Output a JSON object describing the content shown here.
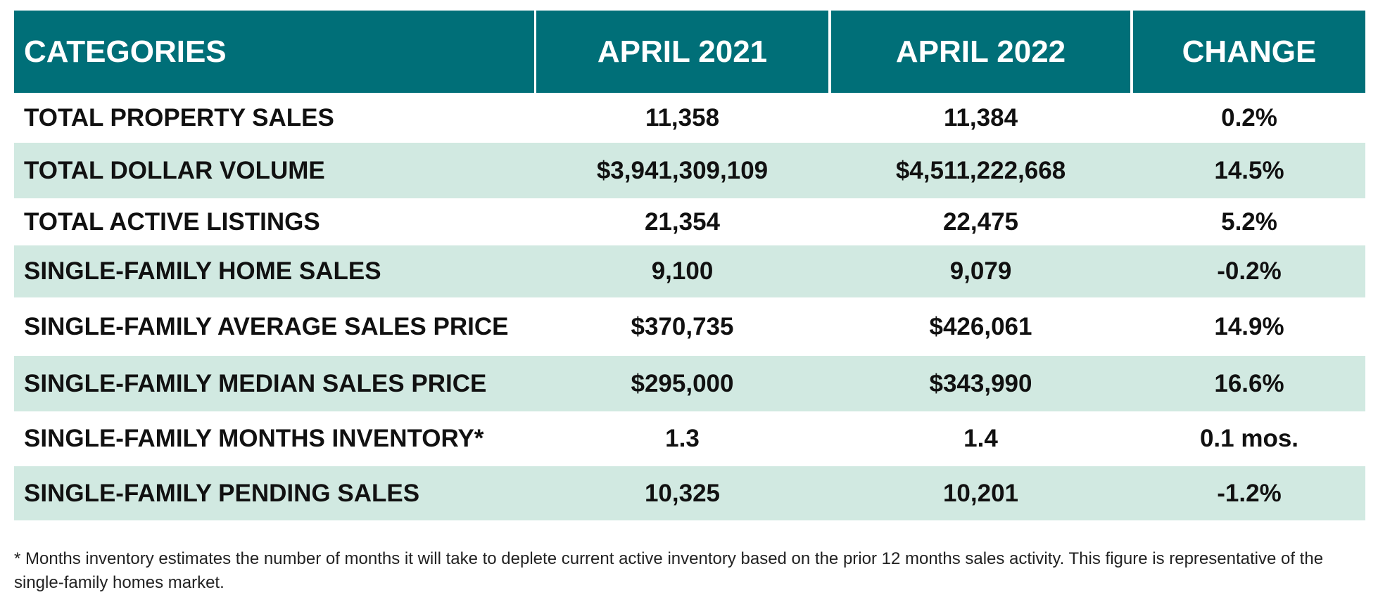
{
  "table": {
    "header": [
      "CATEGORIES",
      "APRIL 2021",
      "APRIL 2022",
      "CHANGE"
    ],
    "rows": [
      [
        "TOTAL PROPERTY SALES",
        "11,358",
        "11,384",
        "0.2%"
      ],
      [
        "TOTAL DOLLAR VOLUME",
        "$3,941,309,109",
        "$4,511,222,668",
        "14.5%"
      ],
      [
        "TOTAL ACTIVE LISTINGS",
        "21,354",
        "22,475",
        "5.2%"
      ],
      [
        "SINGLE-FAMILY HOME SALES",
        "9,100",
        "9,079",
        "-0.2%"
      ],
      [
        "SINGLE-FAMILY AVERAGE SALES PRICE",
        "$370,735",
        "$426,061",
        "14.9%"
      ],
      [
        "SINGLE-FAMILY MEDIAN SALES PRICE",
        "$295,000",
        "$343,990",
        "16.6%"
      ],
      [
        "SINGLE-FAMILY MONTHS INVENTORY*",
        "1.3",
        "1.4",
        "0.1 mos."
      ],
      [
        "SINGLE-FAMILY PENDING SALES",
        "10,325",
        "10,201",
        "-1.2%"
      ]
    ]
  },
  "footnote": "* Months inventory estimates the number of months it will take to deplete current active inventory based on the prior 12 months sales activity. This figure is representative of the single-family homes market."
}
